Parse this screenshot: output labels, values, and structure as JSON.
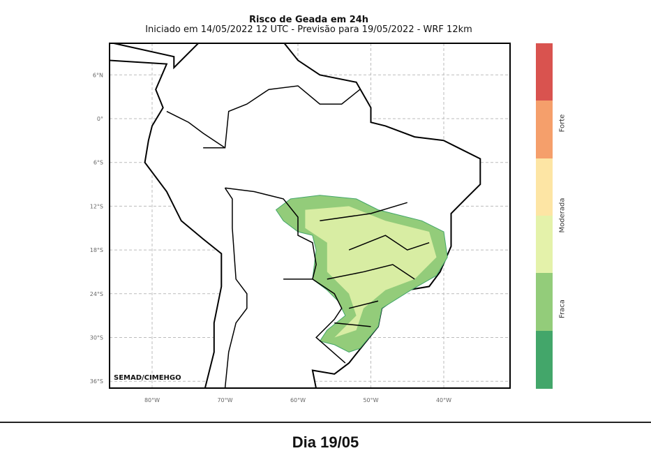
{
  "title": "Risco de Geada em 24h",
  "subtitle": "Iniciado em 14/05/2022 12 UTC - Previsão para 19/05/2022 - WRF 12km",
  "credit": "SEMAD/CIMEHGO",
  "lat_labels": [
    {
      "lat": 6,
      "text": "6°N"
    },
    {
      "lat": 0,
      "text": "0°"
    },
    {
      "lat": -6,
      "text": "6°S"
    },
    {
      "lat": -12,
      "text": "12°S"
    },
    {
      "lat": -18,
      "text": "18°S"
    },
    {
      "lat": -24,
      "text": "24°S"
    },
    {
      "lat": -30,
      "text": "30°S"
    },
    {
      "lat": -36,
      "text": "36°S"
    }
  ],
  "lon_labels": [
    {
      "lon": -80,
      "text": "80°W"
    },
    {
      "lon": -70,
      "text": "70°W"
    },
    {
      "lon": -60,
      "text": "60°W"
    },
    {
      "lon": -50,
      "text": "50°W"
    },
    {
      "lon": -40,
      "text": "40°W"
    }
  ],
  "colorbar": {
    "colors": [
      "#d9534f",
      "#f59f6b",
      "#fde5a4",
      "#e4f2aa",
      "#93cc7a",
      "#43a66a"
    ],
    "labels": [
      "Forte",
      "Moderada",
      "Fraca"
    ]
  },
  "footer": "Dia 19/05"
}
